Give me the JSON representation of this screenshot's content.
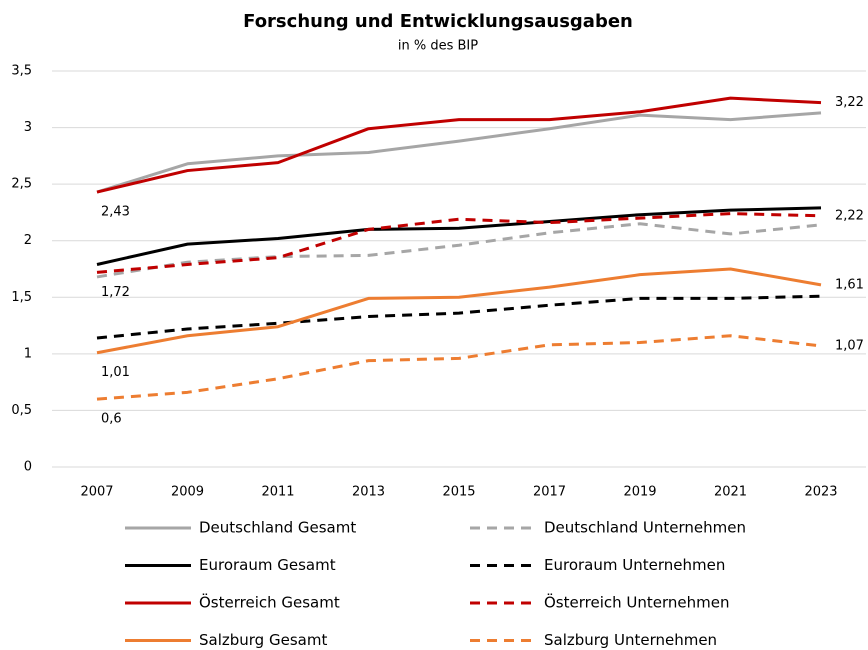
{
  "chart_data": {
    "type": "line",
    "title": "Forschung und Entwicklungsausgaben",
    "subtitle": "in % des BIP",
    "categories": [
      "2007",
      "2009",
      "2011",
      "2013",
      "2015",
      "2017",
      "2019",
      "2021",
      "2023"
    ],
    "ylim": [
      0,
      3.5
    ],
    "yticks": [
      0,
      {
        "value": 0.5,
        "label": "0,5"
      },
      1,
      {
        "value": 1.5,
        "label": "1,5"
      },
      2,
      {
        "value": 2.5,
        "label": "2,5"
      },
      3,
      {
        "value": 3.5,
        "label": "3,5"
      }
    ],
    "grid": true,
    "legend": "bottom",
    "series": [
      {
        "name": "Deutschland Gesamt",
        "color": "#a6a6a6",
        "dashed": false,
        "values": [
          2.43,
          2.68,
          2.75,
          2.78,
          2.88,
          2.99,
          3.11,
          3.07,
          3.13
        ]
      },
      {
        "name": "Deutschland Unternehmen",
        "color": "#a6a6a6",
        "dashed": true,
        "values": [
          1.68,
          1.81,
          1.86,
          1.87,
          1.96,
          2.07,
          2.15,
          2.06,
          2.14
        ]
      },
      {
        "name": "Euroraum Gesamt",
        "color": "#000000",
        "dashed": false,
        "values": [
          1.79,
          1.97,
          2.02,
          2.1,
          2.11,
          2.17,
          2.23,
          2.27,
          2.29
        ]
      },
      {
        "name": "Euroraum Unternehmen",
        "color": "#000000",
        "dashed": true,
        "values": [
          1.14,
          1.22,
          1.27,
          1.33,
          1.36,
          1.43,
          1.49,
          1.49,
          1.51
        ]
      },
      {
        "name": "Österreich Gesamt",
        "color": "#c00000",
        "dashed": false,
        "values": [
          2.43,
          2.62,
          2.69,
          2.99,
          3.07,
          3.07,
          3.14,
          3.26,
          3.22
        ],
        "value_labels": [
          "2,43",
          null,
          null,
          null,
          null,
          null,
          null,
          null,
          "3,22"
        ]
      },
      {
        "name": "Österreich Unternehmen",
        "color": "#c00000",
        "dashed": true,
        "values": [
          1.72,
          1.79,
          1.85,
          2.1,
          2.19,
          2.16,
          2.2,
          2.24,
          2.22
        ],
        "value_labels": [
          "1,72",
          null,
          null,
          null,
          null,
          null,
          null,
          null,
          "2,22"
        ]
      },
      {
        "name": "Salzburg Gesamt",
        "color": "#ed7d31",
        "dashed": false,
        "values": [
          1.01,
          1.16,
          1.24,
          1.49,
          1.5,
          1.59,
          1.7,
          1.75,
          1.61
        ],
        "value_labels": [
          "1,01",
          null,
          null,
          null,
          null,
          null,
          null,
          null,
          "1,61"
        ]
      },
      {
        "name": "Salzburg Unternehmen",
        "color": "#ed7d31",
        "dashed": true,
        "values": [
          0.6,
          0.66,
          0.78,
          0.94,
          0.96,
          1.08,
          1.1,
          1.16,
          1.07
        ],
        "value_labels": [
          "0,6",
          null,
          null,
          null,
          null,
          null,
          null,
          null,
          "1,07"
        ]
      }
    ]
  }
}
